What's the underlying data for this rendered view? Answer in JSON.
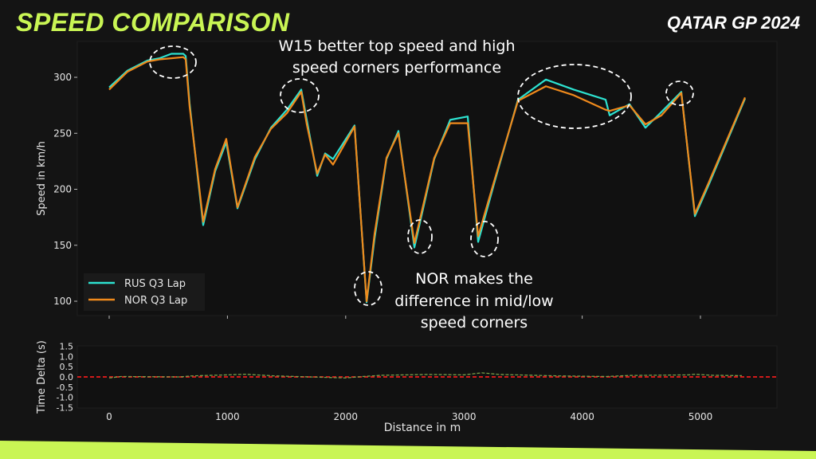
{
  "header": {
    "title": "SPEED COMPARISON",
    "event": "QATAR GP 2024"
  },
  "colors": {
    "background": "#141414",
    "plot_bg": "#111111",
    "accent": "#c9f554",
    "rus": "#2de2d0",
    "nor": "#f08a1c",
    "delta_zero": "#d11a1a",
    "delta_line": "#7aa04a"
  },
  "annotations": {
    "top": [
      "W15 better top speed and high",
      "speed corners performance"
    ],
    "bottom": [
      "NOR makes the",
      "difference in mid/low",
      "speed corners"
    ]
  },
  "chart_data": [
    {
      "type": "line",
      "title": "",
      "xlabel": "",
      "ylabel": "Speed in km/h",
      "xlim": [
        -300,
        5650
      ],
      "ylim": [
        88,
        330
      ],
      "yticks": [
        100,
        150,
        200,
        250,
        300
      ],
      "xticks": [
        0,
        1000,
        2000,
        3000,
        4000,
        5000
      ],
      "grid": false,
      "legend": "bottom-left",
      "series": [
        {
          "name": "RUS Q3 Lap",
          "color": "#2de2d0",
          "x": [
            0,
            155,
            323,
            425,
            526,
            627,
            647,
            680,
            748,
            795,
            896,
            990,
            1085,
            1233,
            1368,
            1503,
            1624,
            1671,
            1759,
            1826,
            1893,
            2075,
            2177,
            2244,
            2345,
            2446,
            2581,
            2749,
            2884,
            3032,
            3120,
            3255,
            3457,
            3693,
            3928,
            4198,
            4232,
            4400,
            4535,
            4670,
            4838,
            4953,
            5074,
            5377
          ],
          "y": [
            291,
            306,
            315,
            317,
            321,
            321,
            319,
            277,
            212,
            168,
            216,
            242,
            183,
            227,
            255,
            271,
            289,
            262,
            212,
            232,
            227,
            257,
            99,
            156,
            227,
            252,
            148,
            227,
            262,
            265,
            153,
            205,
            280,
            298,
            289,
            280,
            266,
            276,
            255,
            269,
            287,
            176,
            205,
            281
          ]
        },
        {
          "name": "NOR Q3 Lap",
          "color": "#f08a1c",
          "x": [
            0,
            155,
            323,
            425,
            526,
            627,
            647,
            680,
            748,
            795,
            896,
            990,
            1085,
            1233,
            1368,
            1503,
            1624,
            1671,
            1759,
            1826,
            1893,
            2075,
            2177,
            2244,
            2345,
            2446,
            2581,
            2749,
            2884,
            3032,
            3120,
            3255,
            3457,
            3693,
            3928,
            4198,
            4232,
            4400,
            4535,
            4670,
            4838,
            4953,
            5074,
            5377
          ],
          "y": [
            289,
            305,
            314,
            316,
            317,
            318,
            316,
            274,
            214,
            171,
            218,
            245,
            184,
            229,
            254,
            268,
            287,
            258,
            214,
            231,
            222,
            256,
            100,
            160,
            228,
            250,
            152,
            228,
            259,
            259,
            158,
            207,
            279,
            292,
            284,
            271,
            270,
            275,
            258,
            266,
            286,
            178,
            207,
            282
          ]
        }
      ]
    },
    {
      "type": "line",
      "title": "",
      "xlabel": "Distance in m",
      "ylabel": "Time Delta (s)",
      "ylim": [
        -1.5,
        1.5
      ],
      "yticks": [
        "1.5",
        "1.0",
        "0.5",
        "0.0",
        "-0.5",
        "-1.0",
        "-1.5"
      ],
      "xticks": [
        "0",
        "1000",
        "2000",
        "3000",
        "4000",
        "5000"
      ],
      "reference_line": 0.0,
      "series": [
        {
          "color": "#7aa04a",
          "x": [
            0,
            100,
            600,
            700,
            1000,
            1150,
            1400,
            1700,
            2000,
            2100,
            2300,
            2700,
            3000,
            3150,
            3300,
            3800,
            4200,
            4400,
            4900,
            4950,
            5100,
            5350
          ],
          "y": [
            -0.05,
            0.02,
            0.0,
            0.05,
            0.1,
            0.13,
            0.05,
            0.0,
            -0.05,
            0.0,
            0.08,
            0.12,
            0.1,
            0.2,
            0.12,
            0.05,
            0.02,
            0.07,
            0.1,
            0.13,
            0.08,
            0.06
          ]
        }
      ]
    }
  ]
}
